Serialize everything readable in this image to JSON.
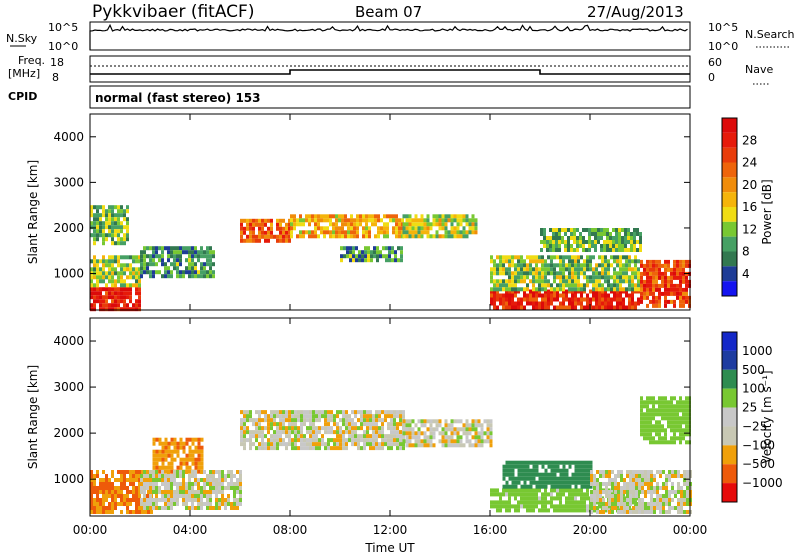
{
  "header": {
    "radar": "Pykkvibaer (fitACF)",
    "beam": "Beam 07",
    "date": "27/Aug/2013"
  },
  "status_panels": {
    "nsky_label": "N.Sky",
    "nsky_ticks": [
      "10^5",
      "10^0"
    ],
    "nsearch_label": "N.Search",
    "nsearch_ticks": [
      "10^5",
      "10^0"
    ],
    "freq_label_1": "Freq.",
    "freq_label_2": "[MHz]",
    "freq_ticks": [
      "18",
      "8"
    ],
    "nave_label": "Nave",
    "nave_ticks": [
      "60",
      "0"
    ],
    "cpid_label": "CPID",
    "cpid_text": "normal (fast stereo) 153"
  },
  "axes": {
    "ylabel": "Slant Range [km]",
    "yticks": [
      "4000",
      "3000",
      "2000",
      "1000"
    ],
    "xlabel": "Time UT",
    "xticks": [
      "00:00",
      "04:00",
      "08:00",
      "12:00",
      "16:00",
      "20:00",
      "00:00"
    ]
  },
  "colors": {
    "power": [
      "#1414f0",
      "#1e3c96",
      "#327850",
      "#46a064",
      "#78c832",
      "#f0dc14",
      "#f5b40a",
      "#f08c0a",
      "#ee640a",
      "#e83c0a",
      "#e61a0a",
      "#dc0a0a"
    ],
    "velocity": [
      "#e60a0a",
      "#ee5a0a",
      "#f0a00a",
      "#c8c8b4",
      "#c8c8c8",
      "#78c832",
      "#2e8c50",
      "#1e3ca0",
      "#1428c8"
    ]
  },
  "chart_data": [
    {
      "type": "heatmap",
      "title": "Power",
      "colorbar_label": "Power [dB]",
      "colorbar_ticks": [
        "28",
        "24",
        "20",
        "16",
        "12",
        "8",
        "4"
      ],
      "colorbar_range": [
        0,
        30
      ],
      "x_range_hours": [
        0,
        24
      ],
      "y_range_km": [
        200,
        4500
      ],
      "regions": [
        {
          "t": [
            0.0,
            2.0
          ],
          "r": [
            250,
            700
          ],
          "value": 27
        },
        {
          "t": [
            0.0,
            2.0
          ],
          "r": [
            700,
            1400
          ],
          "value": 12
        },
        {
          "t": [
            0.0,
            1.5
          ],
          "r": [
            1700,
            2500
          ],
          "value": 10
        },
        {
          "t": [
            2.0,
            5.0
          ],
          "r": [
            900,
            1600
          ],
          "value": 8
        },
        {
          "t": [
            6.0,
            8.0
          ],
          "r": [
            1700,
            2200
          ],
          "value": 22
        },
        {
          "t": [
            8.0,
            12.5
          ],
          "r": [
            1800,
            2300
          ],
          "value": 17
        },
        {
          "t": [
            10.0,
            12.5
          ],
          "r": [
            1300,
            1600
          ],
          "value": 8
        },
        {
          "t": [
            12.5,
            15.5
          ],
          "r": [
            1800,
            2300
          ],
          "value": 13
        },
        {
          "t": [
            16.0,
            22.0
          ],
          "r": [
            250,
            650
          ],
          "value": 26
        },
        {
          "t": [
            16.0,
            22.0
          ],
          "r": [
            650,
            1400
          ],
          "value": 11
        },
        {
          "t": [
            18.0,
            22.0
          ],
          "r": [
            1500,
            2000
          ],
          "value": 10
        },
        {
          "t": [
            22.0,
            24.0
          ],
          "r": [
            300,
            1300
          ],
          "value": 24
        }
      ]
    },
    {
      "type": "heatmap",
      "title": "Velocity",
      "colorbar_label": "Velocity [m s⁻¹]",
      "colorbar_ticks": [
        "1000",
        "500",
        "100",
        "25",
        "−25",
        "−100",
        "−500",
        "−1000"
      ],
      "colorbar_range": [
        -1000,
        1000
      ],
      "x_range_hours": [
        0,
        24
      ],
      "y_range_km": [
        200,
        4500
      ],
      "regions": [
        {
          "t": [
            0.0,
            2.5
          ],
          "r": [
            250,
            1200
          ],
          "value": -300
        },
        {
          "t": [
            2.5,
            4.5
          ],
          "r": [
            1200,
            1900
          ],
          "value": -250
        },
        {
          "t": [
            2.0,
            6.0
          ],
          "r": [
            400,
            1200
          ],
          "value": 0
        },
        {
          "t": [
            6.0,
            12.5
          ],
          "r": [
            1700,
            2500
          ],
          "value": 0
        },
        {
          "t": [
            12.5,
            16.0
          ],
          "r": [
            1700,
            2300
          ],
          "value": 5
        },
        {
          "t": [
            16.0,
            22.0
          ],
          "r": [
            300,
            800
          ],
          "value": 150
        },
        {
          "t": [
            16.5,
            20.0
          ],
          "r": [
            800,
            1400
          ],
          "value": 450
        },
        {
          "t": [
            20.0,
            24.0
          ],
          "r": [
            300,
            1200
          ],
          "value": 0
        },
        {
          "t": [
            22.0,
            24.0
          ],
          "r": [
            1800,
            2800
          ],
          "value": 200
        }
      ]
    }
  ]
}
